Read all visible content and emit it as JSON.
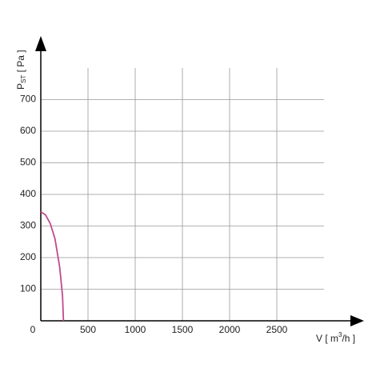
{
  "chart_data": {
    "type": "line",
    "x_label": [
      "V [ m",
      "3",
      "/h ]"
    ],
    "y_label": [
      "P",
      "ST",
      " [ Pa ]"
    ],
    "x": [
      0,
      50,
      100,
      150,
      200,
      230,
      240
    ],
    "series": [
      {
        "color": "#c04b8c",
        "values": [
          345,
          335,
          308,
          260,
          170,
          80,
          0
        ]
      }
    ],
    "xlim": [
      0,
      3000
    ],
    "ylim": [
      0,
      800
    ],
    "xticks": [
      0,
      500,
      1000,
      1500,
      2000,
      2500
    ],
    "yticks": [
      100,
      200,
      300,
      400,
      500,
      600,
      700
    ],
    "grid": true
  }
}
